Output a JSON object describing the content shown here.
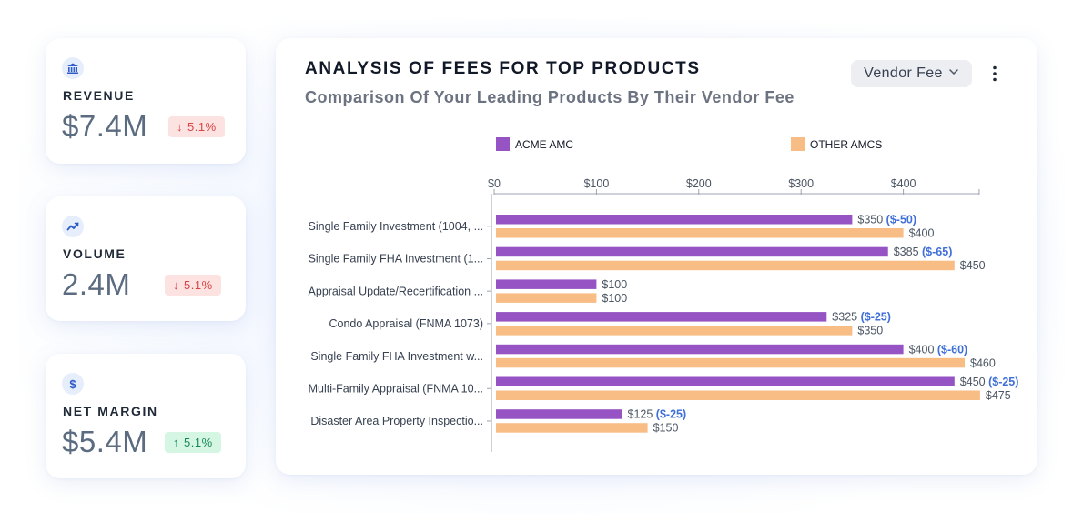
{
  "kpis": [
    {
      "icon": "bank-icon",
      "label": "REVENUE",
      "value": "$7.4M",
      "change": "5.1%",
      "direction": "down"
    },
    {
      "icon": "trend-line-icon",
      "label": "VOLUME",
      "value": "2.4M",
      "change": "5.1%",
      "direction": "down"
    },
    {
      "icon": "dollar-icon",
      "label": "NET MARGIN",
      "value": "$5.4M",
      "change": "5.1%",
      "direction": "up"
    }
  ],
  "chart_card": {
    "title": "ANALYSIS OF FEES FOR TOP PRODUCTS",
    "subtitle": "Comparison Of Your Leading Products By Their Vendor Fee",
    "metric_select": "Vendor Fee"
  },
  "chart_data": {
    "type": "bar",
    "orientation": "horizontal",
    "categories": [
      "Single Family Investment (1004, ...",
      "Single Family FHA Investment (1...",
      "Appraisal Update/Recertification ...",
      "Condo Appraisal (FNMA 1073)",
      "Single Family FHA Investment w...",
      "Multi-Family Appraisal (FNMA 10...",
      "Disaster Area Property Inspectio..."
    ],
    "series": [
      {
        "name": "ACME AMC",
        "color": "#9553c4",
        "values": [
          350,
          385,
          100,
          325,
          400,
          450,
          125
        ]
      },
      {
        "name": "OTHER AMCS",
        "color": "#f7bd85",
        "values": [
          400,
          450,
          100,
          350,
          460,
          475,
          150
        ]
      }
    ],
    "difference_labels": [
      "($-50)",
      "($-65)",
      "",
      "($-25)",
      "($-60)",
      "($-25)",
      "($-25)"
    ],
    "difference_color": "#3f6fd8",
    "value_prefix": "$",
    "xlim": [
      0,
      475
    ],
    "axis_ticks": [
      0,
      100,
      200,
      300,
      400
    ],
    "tick_labels": [
      "$0",
      "$100",
      "$200",
      "$300",
      "$400"
    ],
    "legend_position": "top"
  }
}
